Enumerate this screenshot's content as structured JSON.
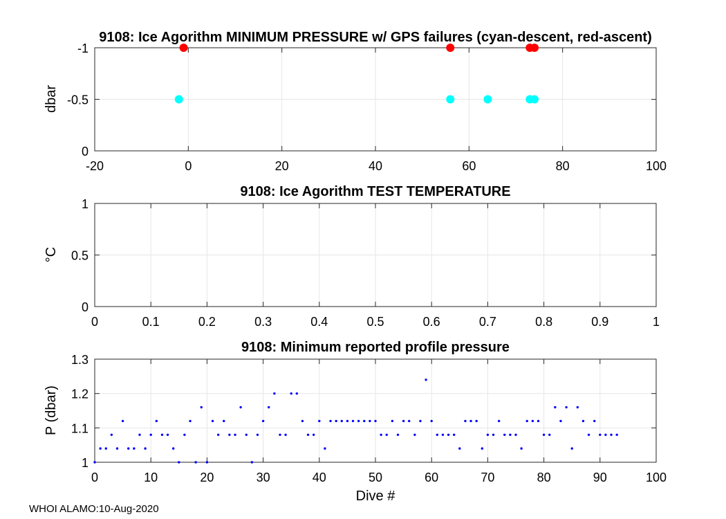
{
  "footer": "WHOI ALAMO:10-Aug-2020",
  "colors": {
    "descent": "#00ffff",
    "ascent": "#ff0000",
    "profile": "#0000ff",
    "grid": "#e6e6e6",
    "axis": "#262626"
  },
  "chart_data": [
    {
      "id": "min-pressure",
      "type": "scatter",
      "title": "9108: Ice Agorithm MINIMUM PRESSURE w/ GPS failures (cyan-descent, red-ascent)",
      "xlabel": "",
      "ylabel": "dbar",
      "xlim": [
        -20,
        100
      ],
      "ylim": [
        0,
        -1
      ],
      "y_reversed": true,
      "xticks": [
        -20,
        0,
        20,
        40,
        60,
        80,
        100
      ],
      "xticklabels": [
        "-20",
        "0",
        "20",
        "40",
        "60",
        "80",
        "100"
      ],
      "yticks": [
        -1,
        -0.5,
        0
      ],
      "yticklabels": [
        "-1",
        "-0.5",
        "0"
      ],
      "grid": true,
      "marker": "large-dot",
      "series": [
        {
          "name": "descent",
          "color": "#00ffff",
          "x": [
            -2,
            56,
            64,
            73,
            74
          ],
          "y": [
            -0.5,
            -0.5,
            -0.5,
            -0.5,
            -0.5
          ]
        },
        {
          "name": "ascent",
          "color": "#ff0000",
          "x": [
            -1,
            56,
            73,
            74
          ],
          "y": [
            -1,
            -1,
            -1,
            -1
          ]
        }
      ]
    },
    {
      "id": "test-temperature",
      "type": "scatter",
      "title": "9108: Ice Agorithm TEST TEMPERATURE",
      "xlabel": "",
      "ylabel": "°C",
      "xlim": [
        0,
        1
      ],
      "ylim": [
        0,
        1
      ],
      "y_reversed": false,
      "xticks": [
        0,
        0.1,
        0.2,
        0.3,
        0.4,
        0.5,
        0.6,
        0.7,
        0.8,
        0.9,
        1
      ],
      "xticklabels": [
        "0",
        "0.1",
        "0.2",
        "0.3",
        "0.4",
        "0.5",
        "0.6",
        "0.7",
        "0.8",
        "0.9",
        "1"
      ],
      "yticks": [
        0,
        0.5,
        1
      ],
      "yticklabels": [
        "0",
        "0.5",
        "1"
      ],
      "grid": true,
      "marker": "large-dot",
      "series": []
    },
    {
      "id": "profile-pressure",
      "type": "scatter",
      "title": "9108: Minimum reported profile pressure",
      "xlabel": "Dive #",
      "ylabel": "P (dbar)",
      "xlim": [
        0,
        100
      ],
      "ylim": [
        1,
        1.3
      ],
      "y_reversed": true,
      "xticks": [
        0,
        10,
        20,
        30,
        40,
        50,
        60,
        70,
        80,
        90,
        100
      ],
      "xticklabels": [
        "0",
        "10",
        "20",
        "30",
        "40",
        "50",
        "60",
        "70",
        "80",
        "90",
        "100"
      ],
      "yticks": [
        1,
        1.1,
        1.2,
        1.3
      ],
      "yticklabels": [
        "1",
        "1.1",
        "1.2",
        "1.3"
      ],
      "grid": true,
      "marker": "small-dot",
      "series": [
        {
          "name": "profile",
          "color": "#0000ff",
          "x": [
            0,
            1,
            2,
            3,
            4,
            5,
            6,
            7,
            8,
            9,
            10,
            11,
            12,
            13,
            14,
            15,
            16,
            17,
            18,
            19,
            20,
            21,
            22,
            23,
            24,
            25,
            26,
            27,
            28,
            29,
            30,
            31,
            32,
            33,
            34,
            35,
            36,
            37,
            38,
            39,
            40,
            41,
            42,
            43,
            44,
            45,
            46,
            47,
            48,
            49,
            50,
            51,
            52,
            53,
            54,
            55,
            56,
            57,
            58,
            59,
            60,
            61,
            62,
            63,
            64,
            65,
            66,
            67,
            68,
            69,
            70,
            71,
            72,
            73,
            74,
            75,
            76,
            77,
            78,
            79,
            80,
            81,
            82,
            83,
            84,
            85,
            86,
            87,
            88,
            89,
            90,
            91,
            92,
            93
          ],
          "y": [
            1.0,
            1.04,
            1.04,
            1.08,
            1.04,
            1.12,
            1.04,
            1.04,
            1.08,
            1.04,
            1.08,
            1.12,
            1.08,
            1.08,
            1.04,
            1.0,
            1.08,
            1.12,
            1.0,
            1.16,
            1.0,
            1.12,
            1.08,
            1.12,
            1.08,
            1.08,
            1.16,
            1.08,
            1.0,
            1.08,
            1.12,
            1.16,
            1.2,
            1.08,
            1.08,
            1.2,
            1.2,
            1.12,
            1.08,
            1.08,
            1.12,
            1.04,
            1.12,
            1.12,
            1.12,
            1.12,
            1.12,
            1.12,
            1.12,
            1.12,
            1.12,
            1.08,
            1.08,
            1.12,
            1.08,
            1.12,
            1.12,
            1.08,
            1.12,
            1.24,
            1.12,
            1.08,
            1.08,
            1.08,
            1.08,
            1.04,
            1.12,
            1.12,
            1.12,
            1.04,
            1.08,
            1.08,
            1.12,
            1.08,
            1.08,
            1.08,
            1.04,
            1.12,
            1.12,
            1.12,
            1.08,
            1.08,
            1.16,
            1.12,
            1.16,
            1.04,
            1.16,
            1.12,
            1.08,
            1.12,
            1.08,
            1.08,
            1.08,
            1.08
          ]
        }
      ]
    }
  ]
}
